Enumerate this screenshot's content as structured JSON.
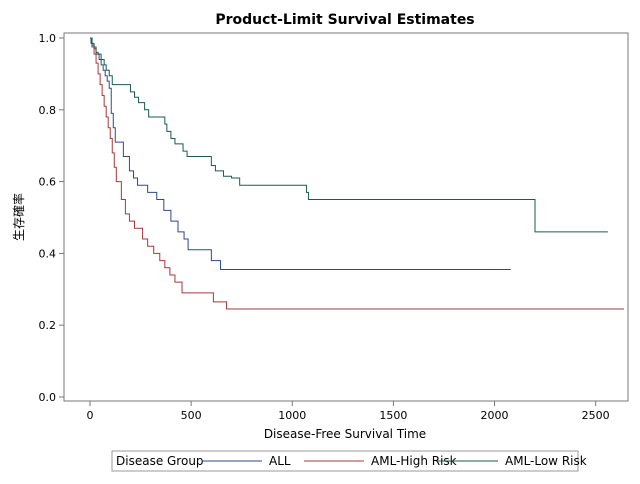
{
  "chart_data": {
    "type": "line",
    "title": "Product-Limit Survival Estimates",
    "xlabel": "Disease-Free Survival Time",
    "ylabel": "生存確率",
    "xlim": [
      -100,
      2640
    ],
    "ylim": [
      0,
      1.0
    ],
    "xticks": [
      0,
      500,
      1000,
      1500,
      2000,
      2500
    ],
    "yticks": [
      0.0,
      0.2,
      0.4,
      0.6,
      0.8,
      1.0
    ],
    "grid": false,
    "legend": {
      "title": "Disease Group",
      "position": "bottom"
    },
    "series": [
      {
        "name": "ALL",
        "color": "#2c4a8c",
        "x": [
          0,
          5,
          20,
          30,
          45,
          55,
          65,
          75,
          85,
          95,
          105,
          115,
          125,
          165,
          195,
          215,
          235,
          285,
          330,
          365,
          400,
          435,
          465,
          485,
          515,
          600,
          645,
          680,
          2080
        ],
        "y": [
          1.0,
          0.985,
          0.97,
          0.955,
          0.94,
          0.925,
          0.91,
          0.895,
          0.88,
          0.86,
          0.79,
          0.75,
          0.71,
          0.67,
          0.63,
          0.61,
          0.59,
          0.57,
          0.55,
          0.52,
          0.49,
          0.46,
          0.44,
          0.41,
          0.41,
          0.38,
          0.355,
          0.355,
          0.355
        ]
      },
      {
        "name": "AML-High Risk",
        "color": "#a23a3a",
        "x": [
          0,
          10,
          20,
          30,
          40,
          50,
          60,
          70,
          80,
          90,
          100,
          110,
          120,
          130,
          155,
          175,
          195,
          220,
          260,
          285,
          315,
          345,
          370,
          395,
          420,
          455,
          480,
          610,
          675,
          2640
        ],
        "y": [
          1.0,
          0.975,
          0.955,
          0.93,
          0.9,
          0.87,
          0.84,
          0.81,
          0.78,
          0.75,
          0.72,
          0.68,
          0.64,
          0.6,
          0.55,
          0.51,
          0.49,
          0.47,
          0.44,
          0.42,
          0.4,
          0.38,
          0.36,
          0.34,
          0.32,
          0.29,
          0.29,
          0.265,
          0.245,
          0.245
        ]
      },
      {
        "name": "AML-Low Risk",
        "color": "#1a5a52",
        "x": [
          0,
          10,
          20,
          30,
          40,
          55,
          70,
          80,
          95,
          110,
          200,
          220,
          240,
          270,
          290,
          370,
          380,
          400,
          420,
          460,
          480,
          600,
          620,
          660,
          700,
          740,
          1070,
          1080,
          2200,
          2560
        ],
        "y": [
          1.0,
          0.98,
          0.975,
          0.96,
          0.955,
          0.94,
          0.925,
          0.91,
          0.895,
          0.87,
          0.85,
          0.835,
          0.82,
          0.8,
          0.78,
          0.76,
          0.74,
          0.72,
          0.705,
          0.685,
          0.67,
          0.645,
          0.63,
          0.615,
          0.61,
          0.59,
          0.57,
          0.55,
          0.46,
          0.46
        ]
      }
    ]
  }
}
